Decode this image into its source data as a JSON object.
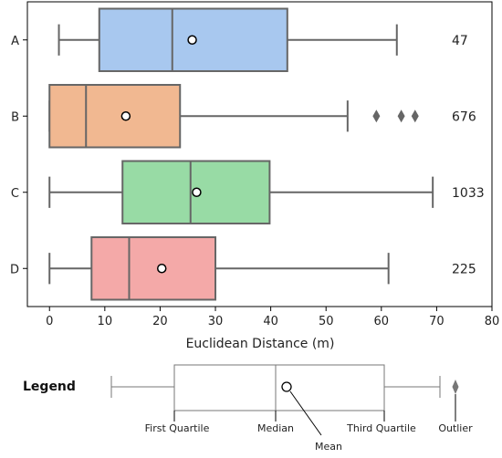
{
  "chart_data": {
    "type": "boxplot",
    "xlabel": "Euclidean Distance (m)",
    "xlim": [
      -4,
      80
    ],
    "xticks": [
      0,
      10,
      20,
      30,
      40,
      50,
      60,
      70,
      80
    ],
    "categories": [
      "A",
      "B",
      "C",
      "D"
    ],
    "series": [
      {
        "category": "A",
        "whisker_low": 1.7,
        "q1": 9.0,
        "median": 22.2,
        "q3": 43.0,
        "whisker_high": 62.8,
        "mean": 25.8,
        "outliers": [],
        "count": "47",
        "color": "#a8c8ef"
      },
      {
        "category": "B",
        "whisker_low": 0.0,
        "q1": 0.0,
        "median": 6.6,
        "q3": 23.6,
        "whisker_high": 53.9,
        "mean": 13.8,
        "outliers": [
          59.1,
          63.6,
          66.1
        ],
        "count": "676",
        "color": "#f1b891"
      },
      {
        "category": "C",
        "whisker_low": 0.0,
        "q1": 13.2,
        "median": 25.5,
        "q3": 39.8,
        "whisker_high": 69.3,
        "mean": 26.6,
        "outliers": [],
        "count": "1033",
        "color": "#98dba5"
      },
      {
        "category": "D",
        "whisker_low": 0.0,
        "q1": 7.6,
        "median": 14.4,
        "q3": 30.0,
        "whisker_high": 61.3,
        "mean": 20.3,
        "outliers": [],
        "count": "225",
        "color": "#f4a9a8"
      }
    ]
  },
  "legend": {
    "title": "Legend",
    "first_quartile": "First Quartile",
    "median": "Median",
    "mean": "Mean",
    "third_quartile": "Third Quartile",
    "outlier": "Outlier"
  }
}
